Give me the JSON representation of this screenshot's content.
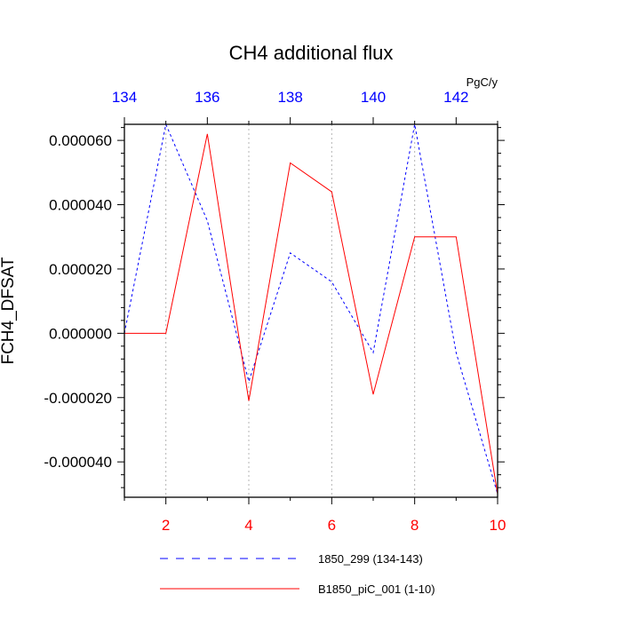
{
  "chart_data": {
    "type": "line",
    "title": "CH4 additional flux",
    "ylabel": "FCH4_DFSAT",
    "units_label": "PgC/y",
    "x_bottom": {
      "range": [
        1,
        10
      ],
      "ticks": [
        2,
        4,
        6,
        8,
        10
      ],
      "tick_labels": [
        "2",
        "4",
        "6",
        "8",
        "10"
      ],
      "color": "#ff0000"
    },
    "x_top": {
      "range": [
        134,
        143
      ],
      "ticks": [
        134,
        136,
        138,
        140,
        142
      ],
      "tick_labels": [
        "134",
        "136",
        "138",
        "140",
        "142"
      ],
      "color": "#0000ff"
    },
    "y": {
      "range": [
        -5.1e-05,
        6.5e-05
      ],
      "ticks": [
        -4e-05,
        -2e-05,
        0,
        2e-05,
        4e-05,
        6e-05
      ],
      "tick_labels": [
        "-0.000040",
        "-0.000020",
        "0.000000",
        "0.000020",
        "0.000040",
        "0.000060"
      ]
    },
    "grid": "vertical dotted lines at even bottom-axis ticks",
    "legend_placement": "bottom",
    "series": [
      {
        "name": "1850_299 (134-143)",
        "axis": "top",
        "color": "#0000ff",
        "dash": "dashed",
        "x": [
          134,
          135,
          136,
          137,
          138,
          139,
          140,
          141,
          142,
          143
        ],
        "values": [
          0.0,
          6.5e-05,
          3.5e-05,
          -1.5e-05,
          2.5e-05,
          1.6e-05,
          -6e-06,
          6.5e-05,
          -6e-06,
          -5e-05
        ]
      },
      {
        "name": "B1850_piC_001 (1-10)",
        "axis": "bottom",
        "color": "#ff0000",
        "dash": "solid",
        "x": [
          1,
          2,
          3,
          4,
          5,
          6,
          7,
          8,
          9,
          10
        ],
        "values": [
          0.0,
          0.0,
          6.2e-05,
          -2.1e-05,
          5.3e-05,
          4.4e-05,
          -1.9e-05,
          3e-05,
          3e-05,
          -5e-05
        ]
      }
    ]
  }
}
